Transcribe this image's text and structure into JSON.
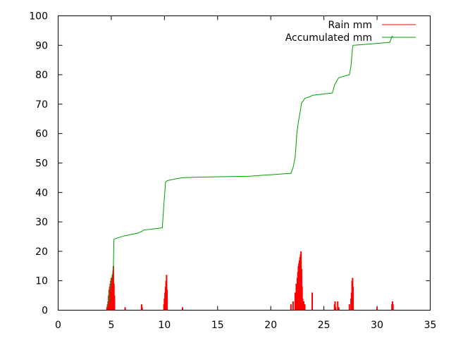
{
  "chart_data": {
    "type": "line",
    "title": "",
    "xlabel": "",
    "ylabel": "",
    "xlim": [
      0,
      35
    ],
    "ylim": [
      0,
      100
    ],
    "xticks": [
      0,
      5,
      10,
      15,
      20,
      25,
      30,
      35
    ],
    "yticks": [
      0,
      10,
      20,
      30,
      40,
      50,
      60,
      70,
      80,
      90,
      100
    ],
    "grid": false,
    "legend_position": "top-right",
    "series": [
      {
        "name": "Rain mm",
        "color": "#ff0000",
        "style": "impulses",
        "x": [
          4.6,
          4.65,
          4.7,
          4.75,
          4.8,
          4.85,
          4.9,
          4.95,
          5.0,
          5.1,
          5.2,
          5.25,
          5.3,
          6.3,
          7.85,
          7.9,
          9.95,
          10.0,
          10.05,
          10.1,
          10.15,
          10.2,
          10.25,
          11.7,
          21.9,
          22.1,
          22.3,
          22.4,
          22.5,
          22.55,
          22.6,
          22.65,
          22.7,
          22.75,
          22.8,
          22.85,
          22.9,
          22.95,
          23.0,
          23.05,
          23.1,
          23.2,
          23.9,
          26.0,
          26.05,
          26.1,
          26.3,
          26.4,
          27.4,
          27.55,
          27.6,
          27.65,
          27.7,
          27.75,
          30.0,
          31.4,
          31.45,
          31.5
        ],
        "y": [
          1,
          2,
          3,
          5,
          7,
          8,
          9,
          10,
          11,
          12,
          15,
          9,
          5,
          1,
          2,
          1,
          2,
          4,
          6,
          8,
          10,
          12,
          7,
          1,
          2,
          3,
          6,
          9,
          11,
          13,
          15,
          16,
          17,
          18,
          19,
          20,
          14,
          8,
          4,
          2,
          3,
          2,
          6,
          2,
          3,
          1,
          3,
          1,
          2,
          4,
          6,
          10,
          11,
          8,
          1,
          2,
          3,
          2
        ]
      },
      {
        "name": "Accumulated mm",
        "color": "#00a000",
        "style": "line",
        "x": [
          4.6,
          4.75,
          4.9,
          5.0,
          5.1,
          5.2,
          5.25,
          5.3,
          5.8,
          6.3,
          7.5,
          7.9,
          8.0,
          9.8,
          9.95,
          10.1,
          10.25,
          11.0,
          11.7,
          13.0,
          18.0,
          21.9,
          22.1,
          22.3,
          22.45,
          22.6,
          22.75,
          22.9,
          23.05,
          23.2,
          23.7,
          23.9,
          25.8,
          26.0,
          26.3,
          26.4,
          27.4,
          27.55,
          27.7,
          27.75,
          28.5,
          31.2,
          31.4,
          31.5
        ],
        "y": [
          1,
          3,
          8,
          10,
          11.5,
          15,
          24,
          24.2,
          24.8,
          25.3,
          26.2,
          26.8,
          27.2,
          28,
          36,
          43.5,
          44,
          44.6,
          45,
          45.2,
          45.5,
          46.5,
          48.5,
          52,
          60,
          64,
          67,
          70.5,
          71,
          72,
          72.5,
          73,
          73.8,
          76.5,
          78.5,
          79,
          80,
          83,
          89.5,
          90,
          90.2,
          91,
          93,
          93
        ]
      }
    ]
  }
}
